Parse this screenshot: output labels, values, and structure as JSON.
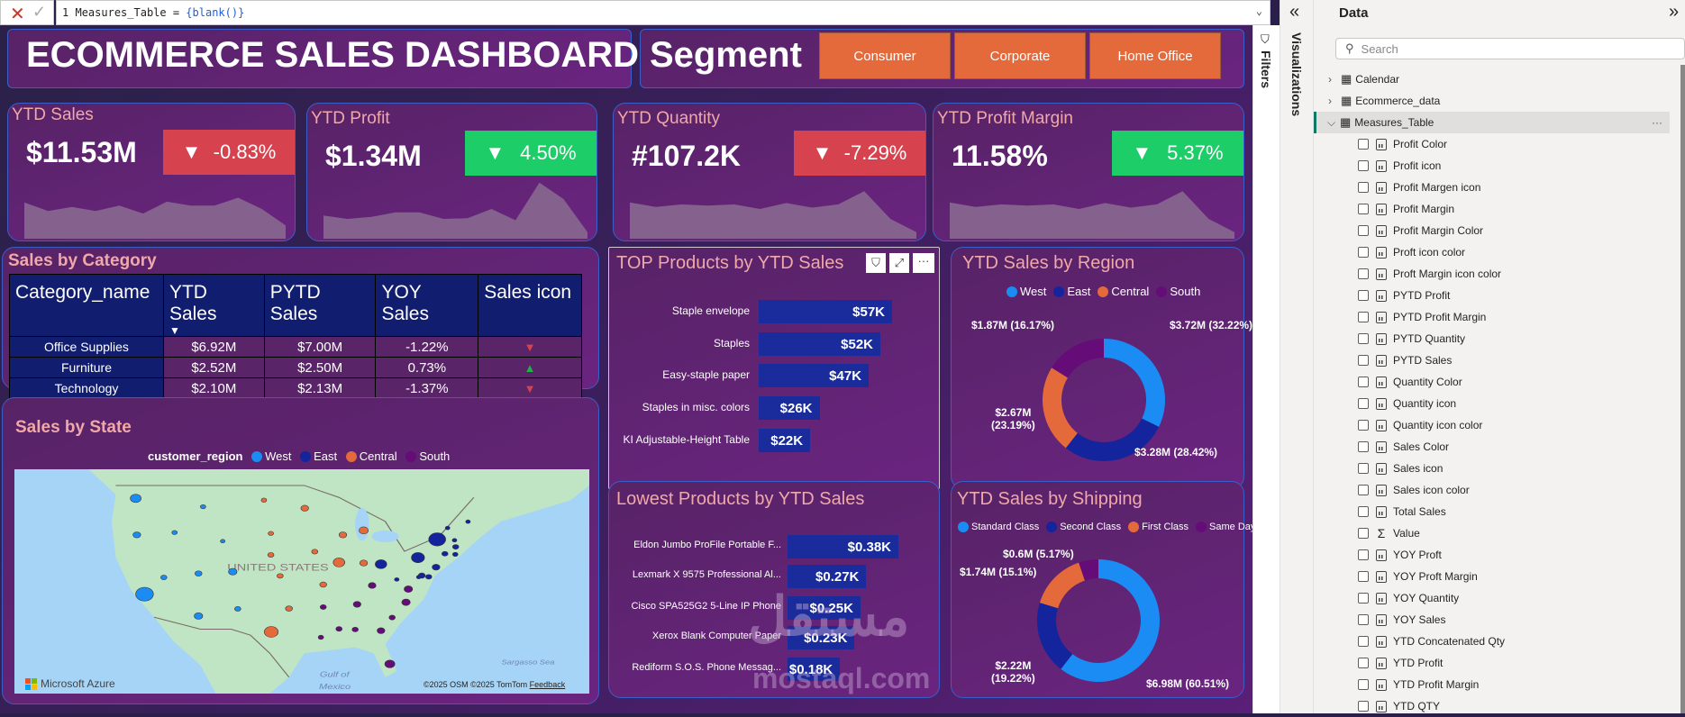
{
  "formula_bar": {
    "line_no": "1",
    "text_before": "Measures_Table = ",
    "text_fn": "{blank()}",
    "cancel_icon": "close-icon",
    "commit_icon": "check-icon"
  },
  "dashboard": {
    "title": "ECOMMERCE SALES DASHBOARD",
    "segment": {
      "label": "Segment",
      "options": [
        "Consumer",
        "Corporate",
        "Home Office"
      ]
    },
    "colors": {
      "negative": "#d6434e",
      "positive": "#1dcd68",
      "west": "#1c8cf5",
      "east": "#14249c",
      "central": "#e46a3c",
      "south": "#650c78",
      "bar": "#1a2c9c"
    },
    "kpis": [
      {
        "title": "YTD Sales",
        "value": "$11.53M",
        "change": "-0.83%",
        "status": "negative",
        "trend": [
          55,
          42,
          48,
          42,
          50,
          38,
          56,
          50,
          50,
          62,
          45,
          20
        ]
      },
      {
        "title": "YTD Profit",
        "value": "$1.34M",
        "change": "4.50%",
        "status": "positive",
        "trend": [
          35,
          30,
          33,
          40,
          40,
          30,
          31,
          45,
          28,
          85,
          60,
          10
        ]
      },
      {
        "title": "YTD Quantity",
        "value": "#107.2K",
        "change": "-7.29%",
        "status": "negative",
        "trend": [
          55,
          48,
          52,
          50,
          52,
          45,
          54,
          47,
          52,
          72,
          30,
          10
        ]
      },
      {
        "title": "YTD Profit Margin",
        "value": "11.58%",
        "change": "5.37%",
        "status": "positive",
        "trend": [
          55,
          48,
          52,
          50,
          52,
          45,
          54,
          47,
          52,
          72,
          30,
          10
        ]
      }
    ],
    "sales_by_category": {
      "title": "Sales by Category",
      "columns": [
        "Category_name",
        "YTD Sales",
        "PYTD Sales",
        "YOY Sales",
        "Sales icon"
      ],
      "sort_icon": "sort-descending-icon",
      "rows": [
        {
          "name": "Office Supplies",
          "ytd": "$6.92M",
          "pytd": "$7.00M",
          "yoy": "-1.22%",
          "icon": "▼",
          "status": "negative"
        },
        {
          "name": "Furniture",
          "ytd": "$2.52M",
          "pytd": "$2.50M",
          "yoy": "0.73%",
          "icon": "▲",
          "status": "positive"
        },
        {
          "name": "Technology",
          "ytd": "$2.10M",
          "pytd": "$2.13M",
          "yoy": "-1.37%",
          "icon": "▼",
          "status": "negative"
        }
      ]
    },
    "top_products": {
      "title": "TOP Products by YTD Sales",
      "items": [
        {
          "name": "Staple envelope",
          "value": 57,
          "label": "$57K"
        },
        {
          "name": "Staples",
          "value": 52,
          "label": "$52K"
        },
        {
          "name": "Easy-staple paper",
          "value": 47,
          "label": "$47K"
        },
        {
          "name": "Staples in misc. colors",
          "value": 26,
          "label": "$26K"
        },
        {
          "name": "KI Adjustable-Height Table",
          "value": 22,
          "label": "$22K"
        }
      ],
      "header_icons": [
        "filter-icon",
        "focus-mode-icon",
        "more-options-icon"
      ]
    },
    "lowest_products": {
      "title": "Lowest Products by YTD Sales",
      "items": [
        {
          "name": "Eldon Jumbo ProFile Portable F...",
          "value": 0.38,
          "label": "$0.38K"
        },
        {
          "name": "Lexmark X 9575 Professional Al...",
          "value": 0.27,
          "label": "$0.27K"
        },
        {
          "name": "Cisco SPA525G2 5-Line IP Phone",
          "value": 0.25,
          "label": "$0.25K"
        },
        {
          "name": "Xerox Blank Computer Paper",
          "value": 0.23,
          "label": "$0.23K"
        },
        {
          "name": "Rediform S.O.S. Phone Messag...",
          "value": 0.18,
          "label": "$0.18K"
        }
      ]
    },
    "sales_by_region": {
      "title": "YTD Sales by Region",
      "slices": [
        {
          "name": "West",
          "value": 3.72,
          "label": "$3.72M (32.22%)",
          "color": "#1c8cf5"
        },
        {
          "name": "East",
          "value": 3.28,
          "label": "$3.28M (28.42%)",
          "color": "#14249c"
        },
        {
          "name": "Central",
          "value": 2.67,
          "label": "$2.67M",
          "label2": "(23.19%)",
          "color": "#e46a3c"
        },
        {
          "name": "South",
          "value": 1.87,
          "label": "$1.87M (16.17%)",
          "color": "#650c78"
        }
      ]
    },
    "sales_by_shipping": {
      "title": "YTD Sales by Shipping",
      "slices": [
        {
          "name": "Standard Class",
          "value": 6.98,
          "label": "$6.98M (60.51%)",
          "color": "#1c8cf5"
        },
        {
          "name": "Second Class",
          "value": 2.22,
          "label": "$2.22M",
          "label2": "(19.22%)",
          "color": "#14249c"
        },
        {
          "name": "First Class",
          "value": 1.74,
          "label": "$1.74M (15.1%)",
          "color": "#e46a3c"
        },
        {
          "name": "Same Day",
          "value": 0.6,
          "label": "$0.6M (5.17%)",
          "color": "#650c78"
        }
      ]
    },
    "sales_by_state": {
      "title": "Sales by State",
      "legend_title": "customer_region",
      "legend": [
        "West",
        "East",
        "Central",
        "South"
      ],
      "country_label": "UNITED STATES",
      "sea_labels": [
        "Gulf of",
        "Mexico",
        "Sargasso Sea"
      ],
      "brand": "Microsoft Azure",
      "attribution": "©2025 OSM  ©2025 TomTom",
      "feedback": "Feedback"
    }
  },
  "panes": {
    "filters_label": "Filters",
    "visualizations_label": "Visualizations",
    "data": {
      "title": "Data",
      "search_placeholder": "Search",
      "tables": [
        {
          "name": "Calendar",
          "expanded": false
        },
        {
          "name": "Ecommerce_data",
          "expanded": false
        },
        {
          "name": "Measures_Table",
          "expanded": true
        }
      ],
      "fields": [
        "Profit Color",
        "Profit icon",
        "Profit Margen icon",
        "Profit Margin",
        "Profit Margin Color",
        "Proft icon color",
        "Proft Margin icon color",
        "PYTD Profit",
        "PYTD Profit Margin",
        "PYTD Quantity",
        "PYTD Sales",
        "Quantity Color",
        "Quantity icon",
        "Quantity icon color",
        "Sales Color",
        "Sales icon",
        "Sales icon color",
        "Total Sales",
        "Value",
        "YOY Proft",
        "YOY Proft Margin",
        "YOY Quantity",
        "YOY Sales",
        "YTD Concatenated Qty",
        "YTD Profit",
        "YTD Profit Margin",
        "YTD QTY"
      ],
      "sum_fields": [
        "Value"
      ]
    }
  },
  "watermark": {
    "arabic": "مستقل",
    "latin": "mostaql.com"
  }
}
